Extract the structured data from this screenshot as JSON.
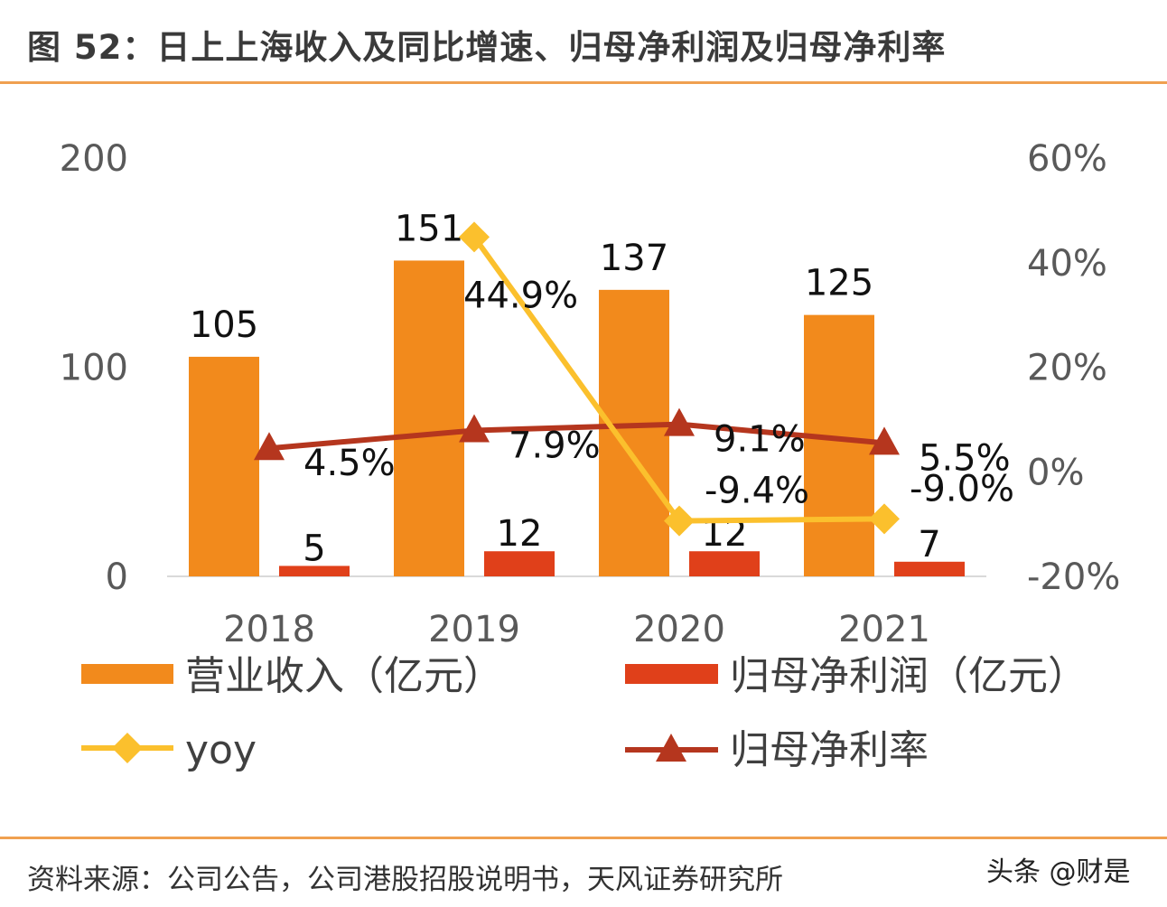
{
  "title": "图 52：日上上海收入及同比增速、归母净利润及归母净利率",
  "source": "资料来源：公司公告，公司港股招股说明书，天风证券研究所",
  "watermark": "头条 @财是",
  "chart_data": {
    "type": "bar+line",
    "categories": [
      "2018",
      "2019",
      "2020",
      "2021"
    ],
    "left_axis": {
      "ylim": [
        0,
        200
      ],
      "ticks": [
        "0",
        "100",
        "200"
      ]
    },
    "right_axis": {
      "ylim": [
        -20,
        60
      ],
      "ticks": [
        "-20%",
        "0%",
        "20%",
        "40%",
        "60%"
      ]
    },
    "series": [
      {
        "name": "营业收入（亿元）",
        "type": "bar",
        "axis": "left",
        "color": "#f28a1c",
        "values": [
          105,
          151,
          137,
          125
        ],
        "labels": [
          "105",
          "151",
          "137",
          "125"
        ]
      },
      {
        "name": "归母净利润（亿元）",
        "type": "bar",
        "axis": "left",
        "color": "#e0401a",
        "values": [
          5,
          12,
          12,
          7
        ],
        "labels": [
          "5",
          "12",
          "12",
          "7"
        ]
      },
      {
        "name": "yoy",
        "type": "line",
        "marker": "diamond",
        "axis": "right",
        "color": "#fbc02d",
        "values": [
          null,
          44.9,
          -9.4,
          -9.0
        ],
        "labels": [
          "",
          "44.9%",
          "-9.4%",
          "-9.0%"
        ]
      },
      {
        "name": "归母净利率",
        "type": "line",
        "marker": "triangle",
        "axis": "right",
        "color": "#b5361e",
        "values": [
          4.5,
          7.9,
          9.1,
          5.5
        ],
        "labels": [
          "4.5%",
          "7.9%",
          "9.1%",
          "5.5%"
        ]
      }
    ],
    "grid": false,
    "legend": "bottom"
  }
}
